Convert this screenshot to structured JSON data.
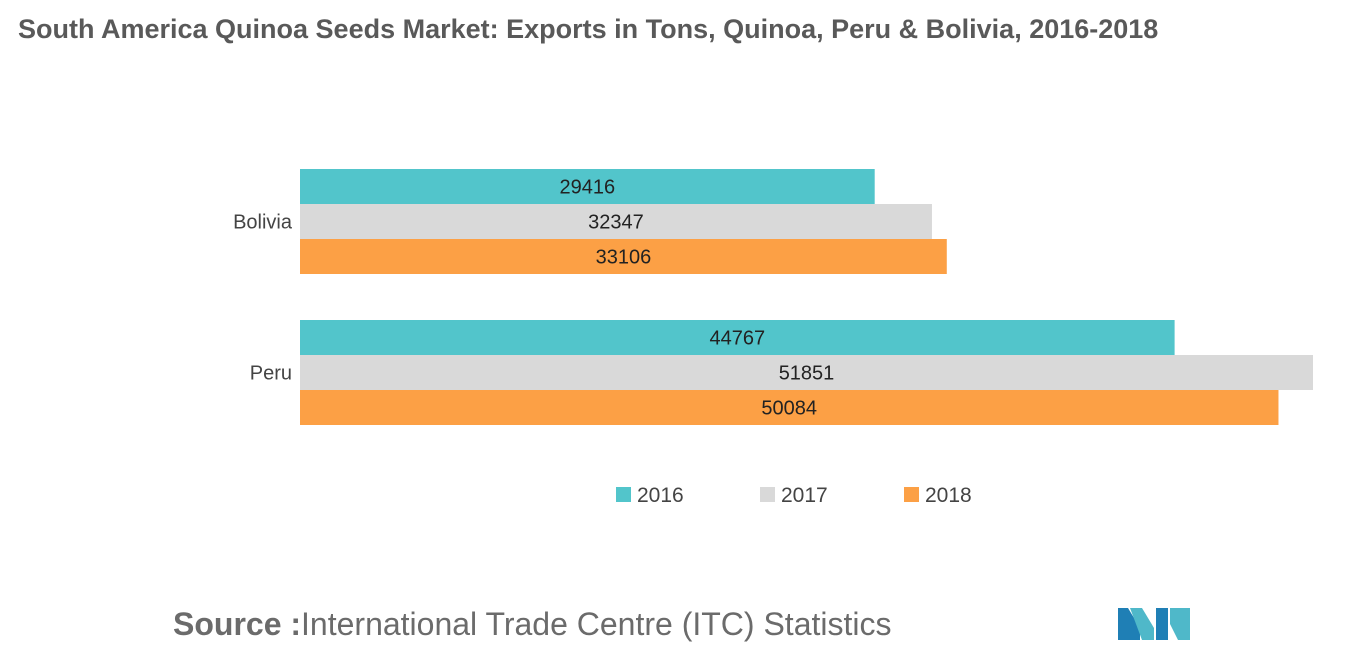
{
  "title": "South America Quinoa Seeds Market: Exports in Tons, Quinoa, Peru & Bolivia, 2016-2018",
  "source": {
    "label": "Source :",
    "text": "International Trade Centre (ITC) Statistics"
  },
  "logo_icon": "mordor-intelligence-logo-icon",
  "chart_data": {
    "type": "bar",
    "orientation": "horizontal",
    "categories": [
      "Bolivia",
      "Peru"
    ],
    "series": [
      {
        "name": "2016",
        "values": [
          29416,
          44767
        ],
        "color": "#52c5cb"
      },
      {
        "name": "2017",
        "values": [
          32347,
          51851
        ],
        "color": "#d9d9d9"
      },
      {
        "name": "2018",
        "values": [
          33106,
          50084
        ],
        "color": "#fca045"
      }
    ],
    "xlim": [
      0,
      51851
    ],
    "grid": false,
    "legend": "bottom-center",
    "data_labels": true
  }
}
